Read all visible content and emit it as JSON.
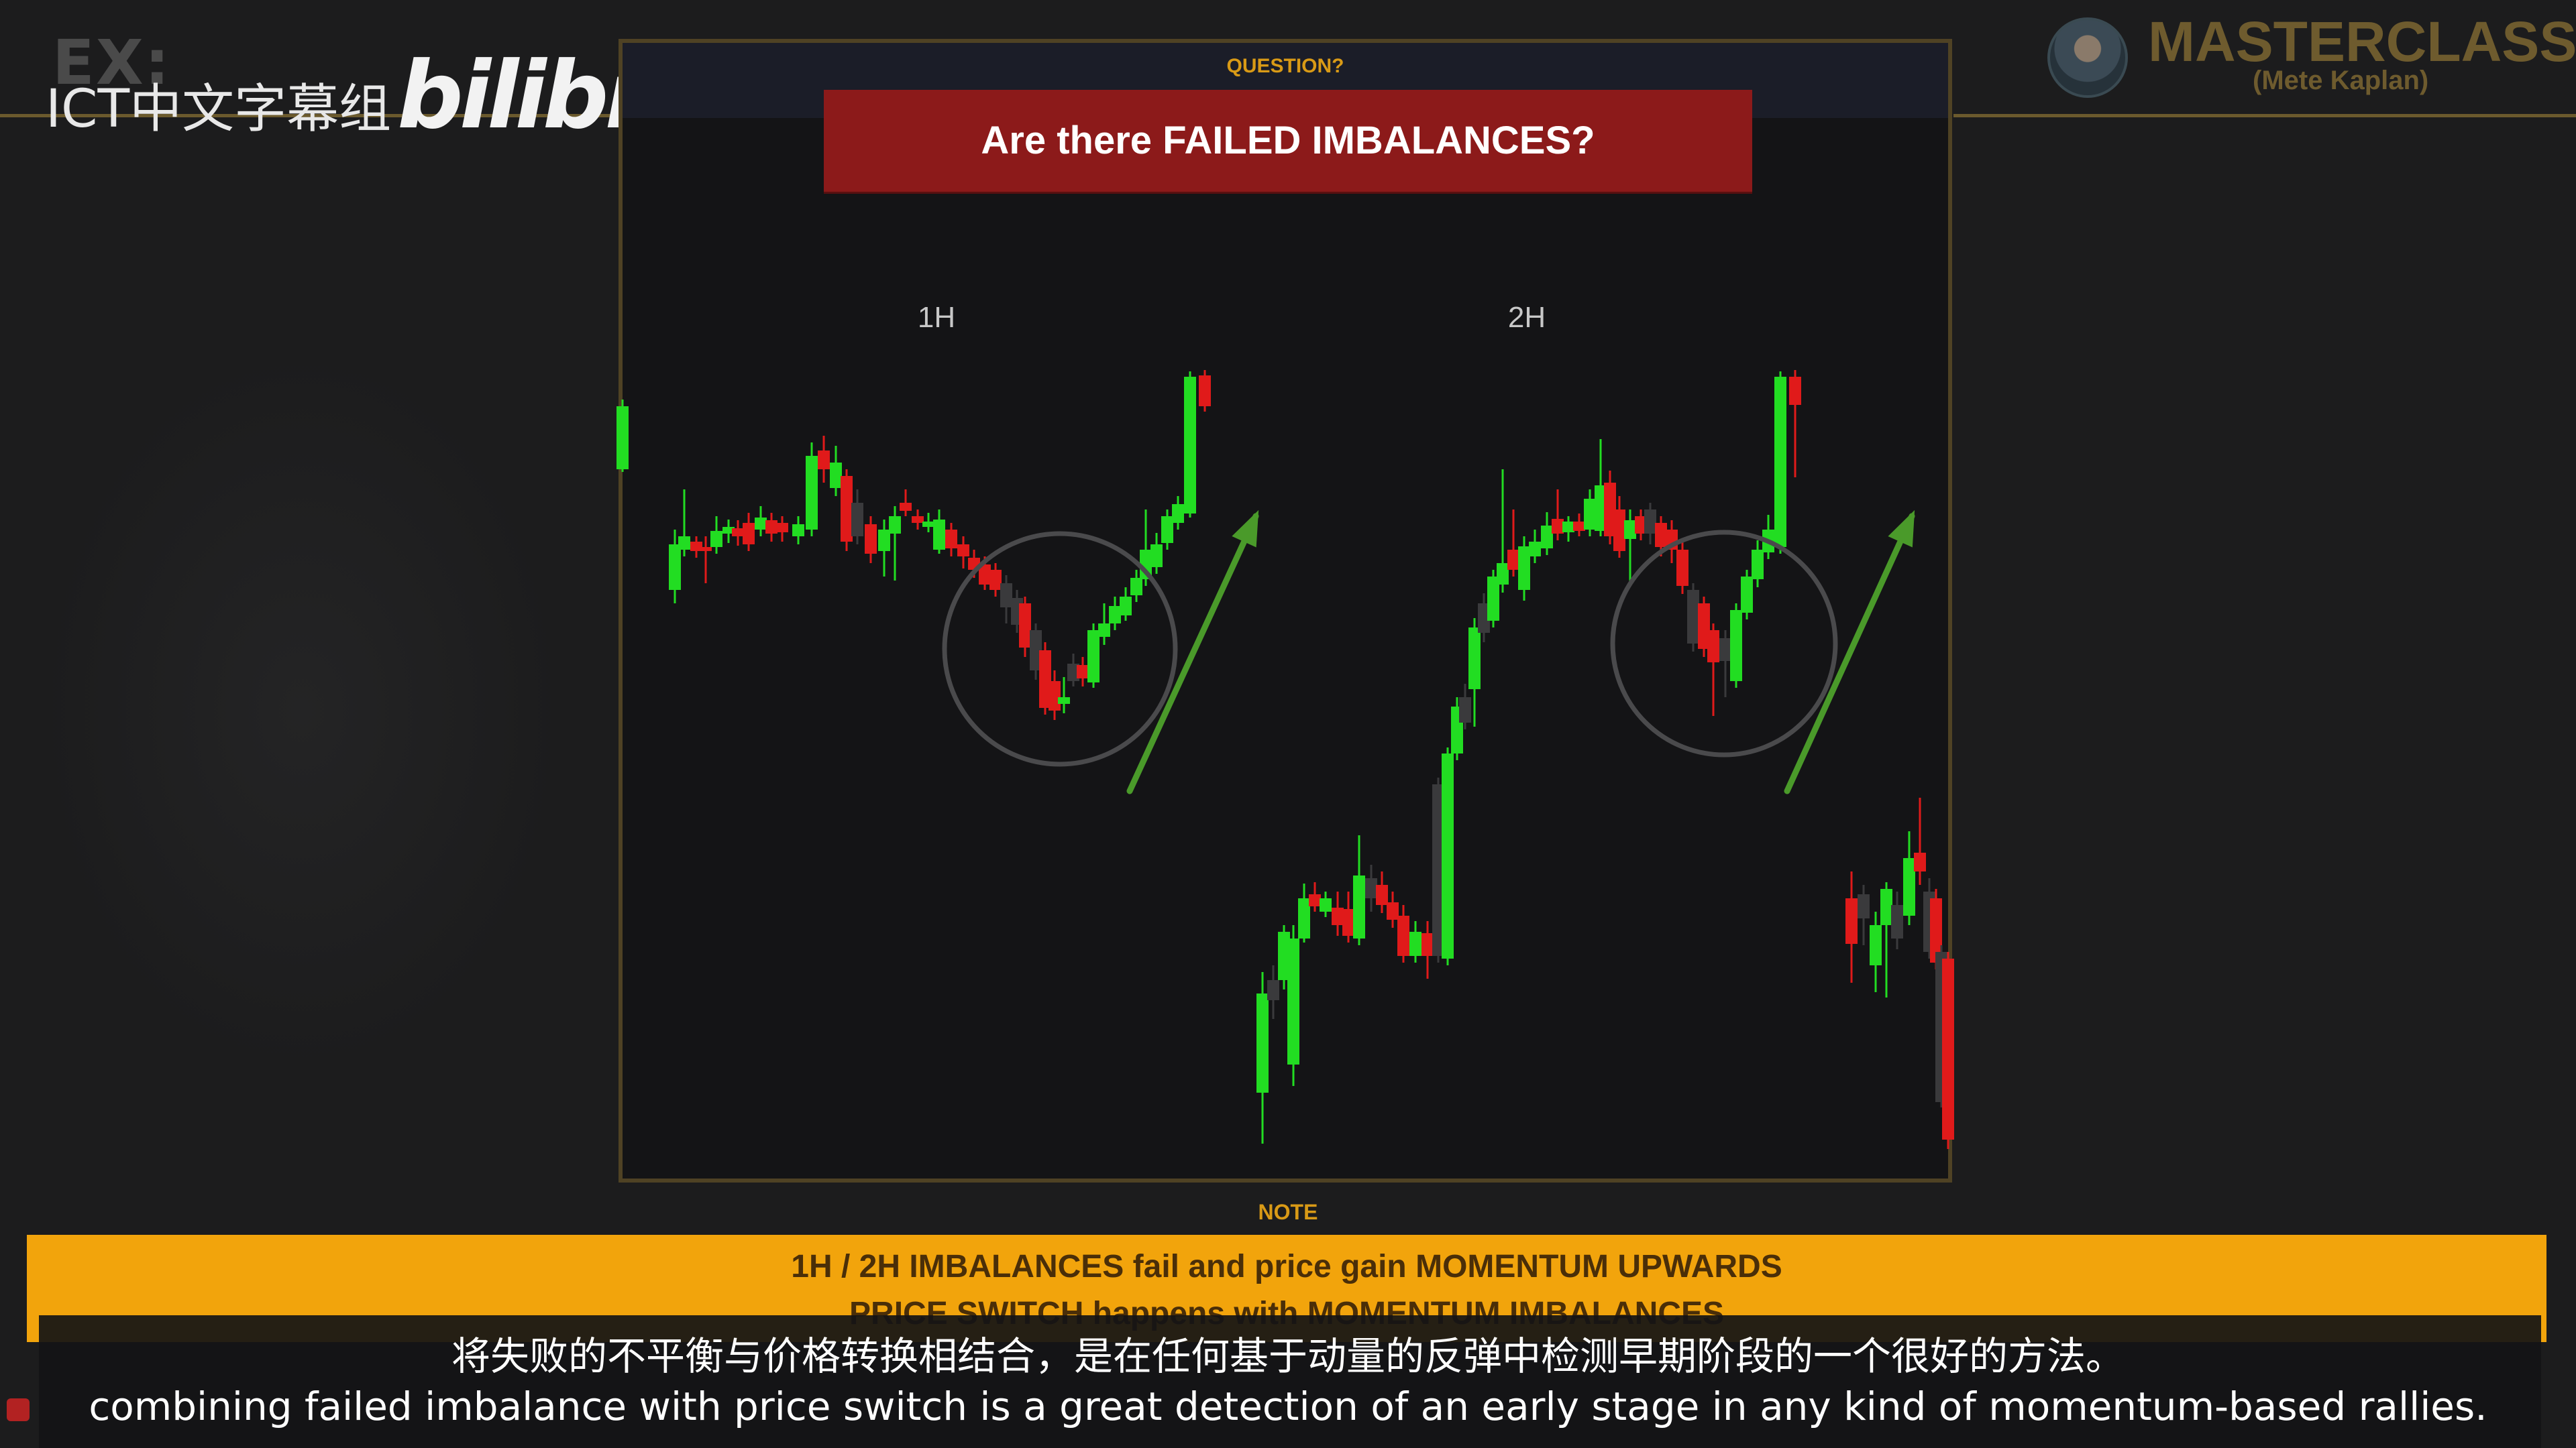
{
  "watermark": {
    "ex": "EX:",
    "group": "ICT中文字幕组",
    "brand": "bilibili"
  },
  "masterclass": {
    "title": "MASTERCLASS",
    "presenter": "(Mete Kaplan)"
  },
  "slide": {
    "question_label": "QUESTION?",
    "question": "Are there FAILED IMBALANCES?",
    "timeframes": [
      {
        "label": "1H"
      },
      {
        "label": "2H"
      }
    ]
  },
  "note": {
    "label": "NOTE",
    "line1": "1H / 2H IMBALANCES fail and price gain MOMENTUM UPWARDS",
    "line2": "PRICE SWITCH happens with MOMENTUM IMBALANCES"
  },
  "subtitles": {
    "chinese": "将失败的不平衡与价格转换相结合，是在任何基于动量的反弹中检测早期阶段的一个很好的方法。",
    "english": "combining failed imbalance with price switch is a great detection of an early stage in any kind of momentum-based rallies."
  },
  "colors": {
    "bull": "#22dd22",
    "bear": "#e01a1a",
    "accent": "#f2a40c",
    "question_box": "#8c1a1a",
    "arrow": "#4a9a2a"
  }
}
